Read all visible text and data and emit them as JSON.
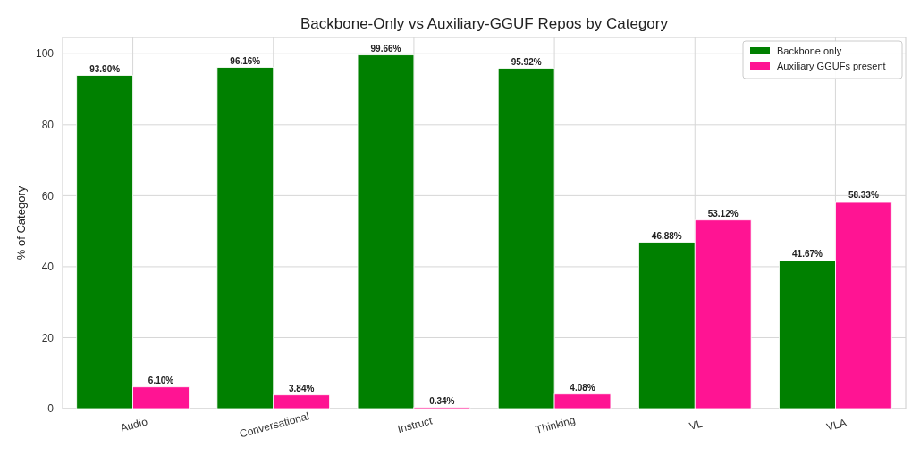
{
  "chart_data": {
    "type": "bar",
    "title": "Backbone-Only vs Auxiliary-GGUF Repos by Category",
    "ylabel": "% of Category",
    "categories": [
      "Audio",
      "Conversational",
      "Instruct",
      "Thinking",
      "VL",
      "VLA"
    ],
    "series": [
      {
        "name": "Backbone only",
        "color": "#008000",
        "values": [
          93.9,
          96.16,
          99.66,
          95.92,
          46.88,
          41.67
        ],
        "value_labels": [
          "93.90%",
          "96.16%",
          "99.66%",
          "95.92%",
          "46.88%",
          "41.67%"
        ]
      },
      {
        "name": "Auxiliary GGUFs present",
        "color": "#ff1493",
        "values": [
          6.1,
          3.84,
          0.34,
          4.08,
          53.12,
          58.33
        ],
        "value_labels": [
          "6.10%",
          "3.84%",
          "0.34%",
          "4.08%",
          "53.12%",
          "58.33%"
        ]
      }
    ],
    "ylim": [
      0,
      104.6
    ],
    "yticks": [
      0,
      20,
      40,
      60,
      80,
      100
    ],
    "grid": true,
    "legend": "top right"
  }
}
